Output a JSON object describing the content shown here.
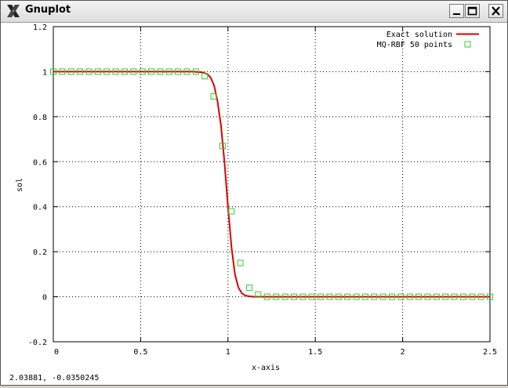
{
  "window": {
    "title": "Gnuplot",
    "icon": "x-window-icon",
    "buttons": [
      "minimize-icon",
      "maximize-icon",
      "close-icon"
    ]
  },
  "status_text": "2.03881, -0.0350245",
  "chart_data": {
    "type": "line",
    "xlabel": "x-axis",
    "ylabel": "sol",
    "xlim": [
      0,
      2.5
    ],
    "ylim": [
      -0.2,
      1.2
    ],
    "x_ticks": [
      "0",
      "0.5",
      "1",
      "1.5",
      "2",
      "2.5"
    ],
    "y_ticks": [
      "-0.2",
      "0",
      "0.2",
      "0.4",
      "0.6",
      "0.8",
      "1",
      "1.2"
    ],
    "grid": true,
    "legend_position": "top-right",
    "colors": {
      "exact": "#dd0000",
      "rbf": "#33cc33"
    },
    "series": [
      {
        "name": "Exact solution",
        "style": "line",
        "x": [
          0,
          0.1,
          0.2,
          0.3,
          0.4,
          0.5,
          0.6,
          0.7,
          0.8,
          0.85,
          0.88,
          0.9,
          0.92,
          0.94,
          0.96,
          0.98,
          1.0,
          1.02,
          1.04,
          1.06,
          1.08,
          1.1,
          1.12,
          1.15,
          1.2,
          1.3,
          1.5,
          2.0,
          2.5
        ],
        "y": [
          1,
          1,
          1,
          1,
          1,
          1,
          1,
          1,
          1,
          0.997,
          0.99,
          0.975,
          0.94,
          0.87,
          0.76,
          0.6,
          0.4,
          0.22,
          0.1,
          0.04,
          0.015,
          0.005,
          0.002,
          0,
          0,
          0,
          0,
          0,
          0
        ]
      },
      {
        "name": "MQ-RBF 50 points",
        "style": "points",
        "x": [
          0,
          0.051,
          0.102,
          0.153,
          0.204,
          0.255,
          0.306,
          0.357,
          0.408,
          0.459,
          0.51,
          0.561,
          0.612,
          0.663,
          0.714,
          0.765,
          0.816,
          0.867,
          0.918,
          0.969,
          1.02,
          1.071,
          1.122,
          1.173,
          1.224,
          1.276,
          1.327,
          1.378,
          1.429,
          1.48,
          1.531,
          1.582,
          1.633,
          1.684,
          1.735,
          1.786,
          1.837,
          1.888,
          1.939,
          1.99,
          2.041,
          2.092,
          2.143,
          2.194,
          2.245,
          2.296,
          2.347,
          2.398,
          2.449,
          2.5
        ],
        "y": [
          1,
          1,
          1,
          1,
          1,
          1,
          1,
          1,
          1,
          1,
          1,
          1,
          1,
          1,
          1,
          1,
          1,
          0.98,
          0.89,
          0.67,
          0.38,
          0.15,
          0.04,
          0.01,
          0,
          0,
          0,
          0,
          0,
          0,
          0,
          0,
          0,
          0,
          0,
          0,
          0,
          0,
          0,
          0,
          0,
          0,
          0,
          0,
          0,
          0,
          0,
          0,
          0,
          0
        ]
      }
    ]
  }
}
